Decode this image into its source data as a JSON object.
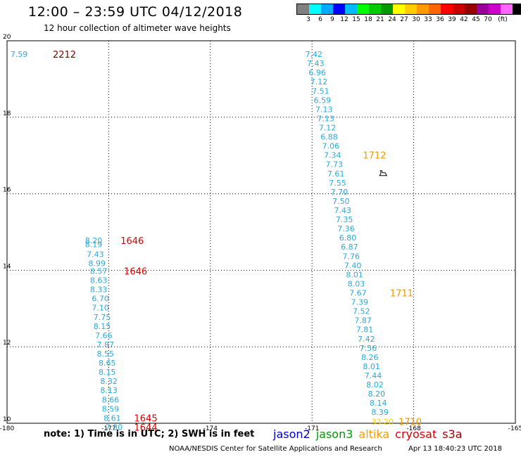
{
  "header": {
    "title": "12:00 – 23:59 UTC 04/12/2018",
    "subtitle": "12 hour collection of altimeter wave heights"
  },
  "legend": {
    "unit": "(ft)",
    "colors": [
      "#808080",
      "#00ffff",
      "#00aaff",
      "#0000ff",
      "#00bbff",
      "#00ff00",
      "#00cc00",
      "#009900",
      "#ffff00",
      "#ffcc00",
      "#ff9900",
      "#ff6600",
      "#ff0000",
      "#cc0000",
      "#990000",
      "#990099",
      "#cc00cc",
      "#ff66ff",
      "#000000"
    ],
    "values": [
      "3",
      "6",
      "9",
      "12",
      "15",
      "18",
      "21",
      "24",
      "27",
      "30",
      "33",
      "36",
      "39",
      "42",
      "45",
      "70"
    ]
  },
  "map": {
    "x_ticks": [
      "-180",
      "-177",
      "-174",
      "-171",
      "-168",
      "-165"
    ],
    "y_ticks": [
      "20",
      "18",
      "16",
      "14",
      "12",
      "10"
    ],
    "x_range": [
      -180,
      -165
    ],
    "y_range": [
      10,
      20
    ],
    "grid": true,
    "data_color": "#29a9dc",
    "track_left": {
      "points": [
        {
          "lon": -177.7,
          "lat": 14.78,
          "v": "8.20"
        },
        {
          "lon": -177.7,
          "lat": 14.68,
          "v": "8.19"
        },
        {
          "lon": -177.65,
          "lat": 14.42,
          "v": "7.43"
        },
        {
          "lon": -177.6,
          "lat": 14.18,
          "v": "8.99"
        },
        {
          "lon": -177.55,
          "lat": 13.98,
          "v": "8.57"
        },
        {
          "lon": -177.55,
          "lat": 13.74,
          "v": "8.63"
        },
        {
          "lon": -177.55,
          "lat": 13.5,
          "v": "8.33"
        },
        {
          "lon": -177.5,
          "lat": 13.26,
          "v": "6.70"
        },
        {
          "lon": -177.5,
          "lat": 13.02,
          "v": "7.10"
        },
        {
          "lon": -177.45,
          "lat": 12.78,
          "v": "7.75"
        },
        {
          "lon": -177.45,
          "lat": 12.54,
          "v": "8.15"
        },
        {
          "lon": -177.4,
          "lat": 12.3,
          "v": "7.66"
        },
        {
          "lon": -177.35,
          "lat": 12.06,
          "v": "7.87"
        },
        {
          "lon": -177.35,
          "lat": 11.82,
          "v": "8.55"
        },
        {
          "lon": -177.3,
          "lat": 11.58,
          "v": "8.65"
        },
        {
          "lon": -177.3,
          "lat": 11.34,
          "v": "8.15"
        },
        {
          "lon": -177.25,
          "lat": 11.1,
          "v": "8.32"
        },
        {
          "lon": -177.25,
          "lat": 10.86,
          "v": "8.13"
        },
        {
          "lon": -177.2,
          "lat": 10.62,
          "v": "8.66"
        },
        {
          "lon": -177.2,
          "lat": 10.38,
          "v": "8.59"
        },
        {
          "lon": -177.15,
          "lat": 10.14,
          "v": "8.61"
        },
        {
          "lon": -177.1,
          "lat": 9.9,
          "v": "7.80"
        }
      ],
      "times": [
        {
          "lon": -176.65,
          "lat": 14.78,
          "t": "1646",
          "color": "#dd0000"
        },
        {
          "lon": -176.55,
          "lat": 13.98,
          "t": "1646",
          "color": "#dd0000"
        },
        {
          "lon": -176.25,
          "lat": 10.14,
          "t": "1645",
          "color": "#dd0000"
        },
        {
          "lon": -176.25,
          "lat": 9.9,
          "t": "1644",
          "color": "#dd0000"
        }
      ]
    },
    "track_right": {
      "points": [
        {
          "lon": -171.2,
          "lat": 19.65,
          "v": "7.42"
        },
        {
          "lon": -171.15,
          "lat": 19.41,
          "v": "7.43"
        },
        {
          "lon": -171.1,
          "lat": 19.17,
          "v": "6.96"
        },
        {
          "lon": -171.05,
          "lat": 18.93,
          "v": "7.12"
        },
        {
          "lon": -171.0,
          "lat": 18.69,
          "v": "7.51"
        },
        {
          "lon": -170.95,
          "lat": 18.45,
          "v": "6.59"
        },
        {
          "lon": -170.9,
          "lat": 18.21,
          "v": "7.13"
        },
        {
          "lon": -170.85,
          "lat": 17.97,
          "v": "7.13"
        },
        {
          "lon": -170.8,
          "lat": 17.73,
          "v": "7.12"
        },
        {
          "lon": -170.75,
          "lat": 17.49,
          "v": "6.88"
        },
        {
          "lon": -170.7,
          "lat": 17.25,
          "v": "7.06"
        },
        {
          "lon": -170.65,
          "lat": 17.01,
          "v": "7.34"
        },
        {
          "lon": -170.6,
          "lat": 16.77,
          "v": "7.73"
        },
        {
          "lon": -170.55,
          "lat": 16.53,
          "v": "7.61"
        },
        {
          "lon": -170.5,
          "lat": 16.29,
          "v": "7.55"
        },
        {
          "lon": -170.45,
          "lat": 16.05,
          "v": "7.70"
        },
        {
          "lon": -170.4,
          "lat": 15.81,
          "v": "7.50"
        },
        {
          "lon": -170.35,
          "lat": 15.57,
          "v": "7.43"
        },
        {
          "lon": -170.3,
          "lat": 15.33,
          "v": "7.35"
        },
        {
          "lon": -170.25,
          "lat": 15.09,
          "v": "7.36"
        },
        {
          "lon": -170.2,
          "lat": 14.85,
          "v": "6.80"
        },
        {
          "lon": -170.15,
          "lat": 14.61,
          "v": "6.87"
        },
        {
          "lon": -170.1,
          "lat": 14.37,
          "v": "7.76"
        },
        {
          "lon": -170.05,
          "lat": 14.13,
          "v": "7.40"
        },
        {
          "lon": -170.0,
          "lat": 13.89,
          "v": "8.01"
        },
        {
          "lon": -169.95,
          "lat": 13.65,
          "v": "8.03"
        },
        {
          "lon": -169.9,
          "lat": 13.41,
          "v": "7.67"
        },
        {
          "lon": -169.85,
          "lat": 13.17,
          "v": "7.39"
        },
        {
          "lon": -169.8,
          "lat": 12.93,
          "v": "7.52"
        },
        {
          "lon": -169.75,
          "lat": 12.69,
          "v": "7.87"
        },
        {
          "lon": -169.7,
          "lat": 12.45,
          "v": "7.81"
        },
        {
          "lon": -169.65,
          "lat": 12.21,
          "v": "7.42"
        },
        {
          "lon": -169.6,
          "lat": 11.97,
          "v": "7.56"
        },
        {
          "lon": -169.55,
          "lat": 11.73,
          "v": "8.26"
        },
        {
          "lon": -169.5,
          "lat": 11.49,
          "v": "8.01"
        },
        {
          "lon": -169.45,
          "lat": 11.25,
          "v": "7.44"
        },
        {
          "lon": -169.4,
          "lat": 11.01,
          "v": "8.02"
        },
        {
          "lon": -169.35,
          "lat": 10.77,
          "v": "8.20"
        },
        {
          "lon": -169.3,
          "lat": 10.53,
          "v": "8.14"
        },
        {
          "lon": -169.25,
          "lat": 10.29,
          "v": "8.39"
        }
      ],
      "extra_point": {
        "lon": -169.25,
        "lat": 10.05,
        "v": "33.20",
        "color": "#ffcc00"
      },
      "times": [
        {
          "lon": -169.5,
          "lat": 17.01,
          "t": "1712",
          "color": "#ee9900"
        },
        {
          "lon": -168.7,
          "lat": 13.41,
          "t": "1711",
          "color": "#ee9900"
        },
        {
          "lon": -168.45,
          "lat": 10.05,
          "t": "1710",
          "color": "#ee9900"
        }
      ]
    },
    "corner_point": {
      "lon": -179.9,
      "lat": 19.65,
      "v": "7.59"
    },
    "corner_time": {
      "lon": -178.65,
      "lat": 19.65,
      "t": "2212",
      "color": "#7a0000"
    },
    "marker": {
      "lon": -168.9,
      "lat": 16.53,
      "icon": "airplane-icon"
    }
  },
  "note": "note:  1) Time is in UTC;  2) SWH is in feet",
  "satellites": [
    {
      "name": "jason2",
      "color": "#0000cc"
    },
    {
      "name": "jason3",
      "color": "#009900"
    },
    {
      "name": "altika",
      "color": "#ff9900"
    },
    {
      "name": "cryosat",
      "color": "#dd0000"
    },
    {
      "name": "s3a",
      "color": "#990000"
    }
  ],
  "footer": {
    "left": "NOAA/NESDIS Center for Satellite Applications and Research",
    "right": "Apr 13 18:40:23 UTC 2018"
  }
}
